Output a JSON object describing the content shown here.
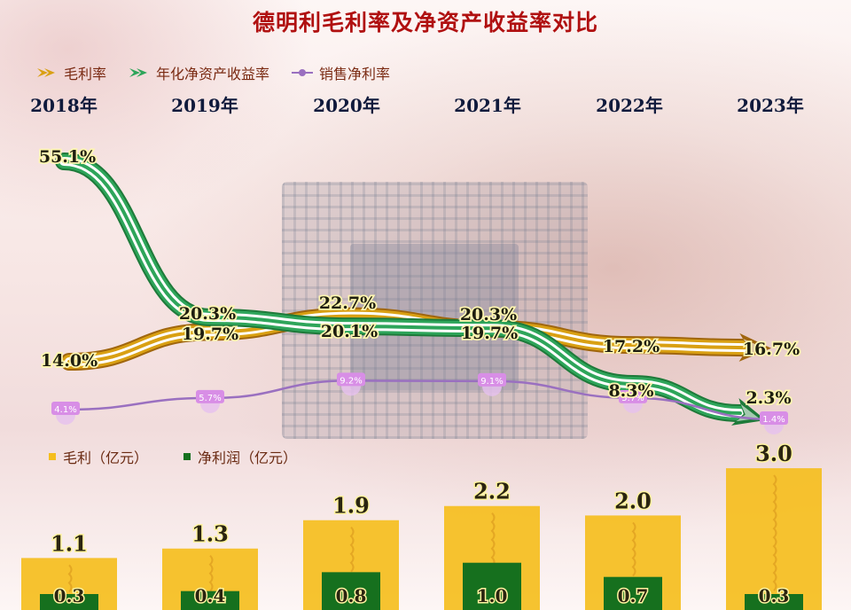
{
  "title": "德明利毛利率及净资产收益率对比",
  "legend": {
    "gross_margin": "毛利率",
    "roe": "年化净资产收益率",
    "net_margin": "销售净利率"
  },
  "legend2": {
    "gross_profit": "毛利（亿元）",
    "net_profit": "净利润（亿元）"
  },
  "colors": {
    "gross_margin": "#d9a013",
    "gross_margin_arrow": "#a0660e",
    "roe": "#2ea55a",
    "roe_arrow": "#1e7a3a",
    "net_margin": "#9a70c0",
    "net_margin_label_bg": "#d88ee6",
    "bar_gross": "#f5be1e",
    "bar_net": "#16701e",
    "title": "#b01010"
  },
  "chart_data": [
    {
      "type": "line",
      "x": [
        "2018年",
        "2019年",
        "2020年",
        "2021年",
        "2022年",
        "2023年"
      ],
      "series": [
        {
          "name": "毛利率",
          "values": [
            14.0,
            19.7,
            22.7,
            20.3,
            17.2,
            16.7
          ],
          "labels": [
            "14.0%",
            "19.7%",
            "22.7%",
            "20.3%",
            "17.2%",
            "16.7%"
          ]
        },
        {
          "name": "年化净资产收益率",
          "values": [
            55.1,
            20.3,
            20.1,
            19.7,
            8.3,
            2.3
          ],
          "labels": [
            "55.1%",
            "20.3%",
            "20.1%",
            "19.7%",
            "8.3%",
            "2.3%"
          ]
        },
        {
          "name": "销售净利率",
          "values": [
            4.1,
            5.7,
            9.2,
            9.1,
            5.7,
            1.4
          ],
          "labels": [
            "4.1%",
            "5.7%",
            "9.2%",
            "9.1%",
            "5.7%",
            "1.4%"
          ]
        }
      ]
    },
    {
      "type": "bar",
      "categories": [
        "2018年",
        "2019年",
        "2020年",
        "2021年",
        "2022年",
        "2023年"
      ],
      "series": [
        {
          "name": "毛利（亿元）",
          "values": [
            1.1,
            1.3,
            1.9,
            2.2,
            2.0,
            3.0
          ],
          "labels": [
            "1.1",
            "1.3",
            "1.9",
            "2.2",
            "2.0",
            "3.0"
          ]
        },
        {
          "name": "净利润（亿元）",
          "values": [
            0.3,
            0.4,
            0.8,
            1.0,
            0.7,
            0.3
          ],
          "labels": [
            "0.3",
            "0.4",
            "0.8",
            "1.0",
            "0.7",
            "0.3"
          ]
        }
      ]
    }
  ]
}
